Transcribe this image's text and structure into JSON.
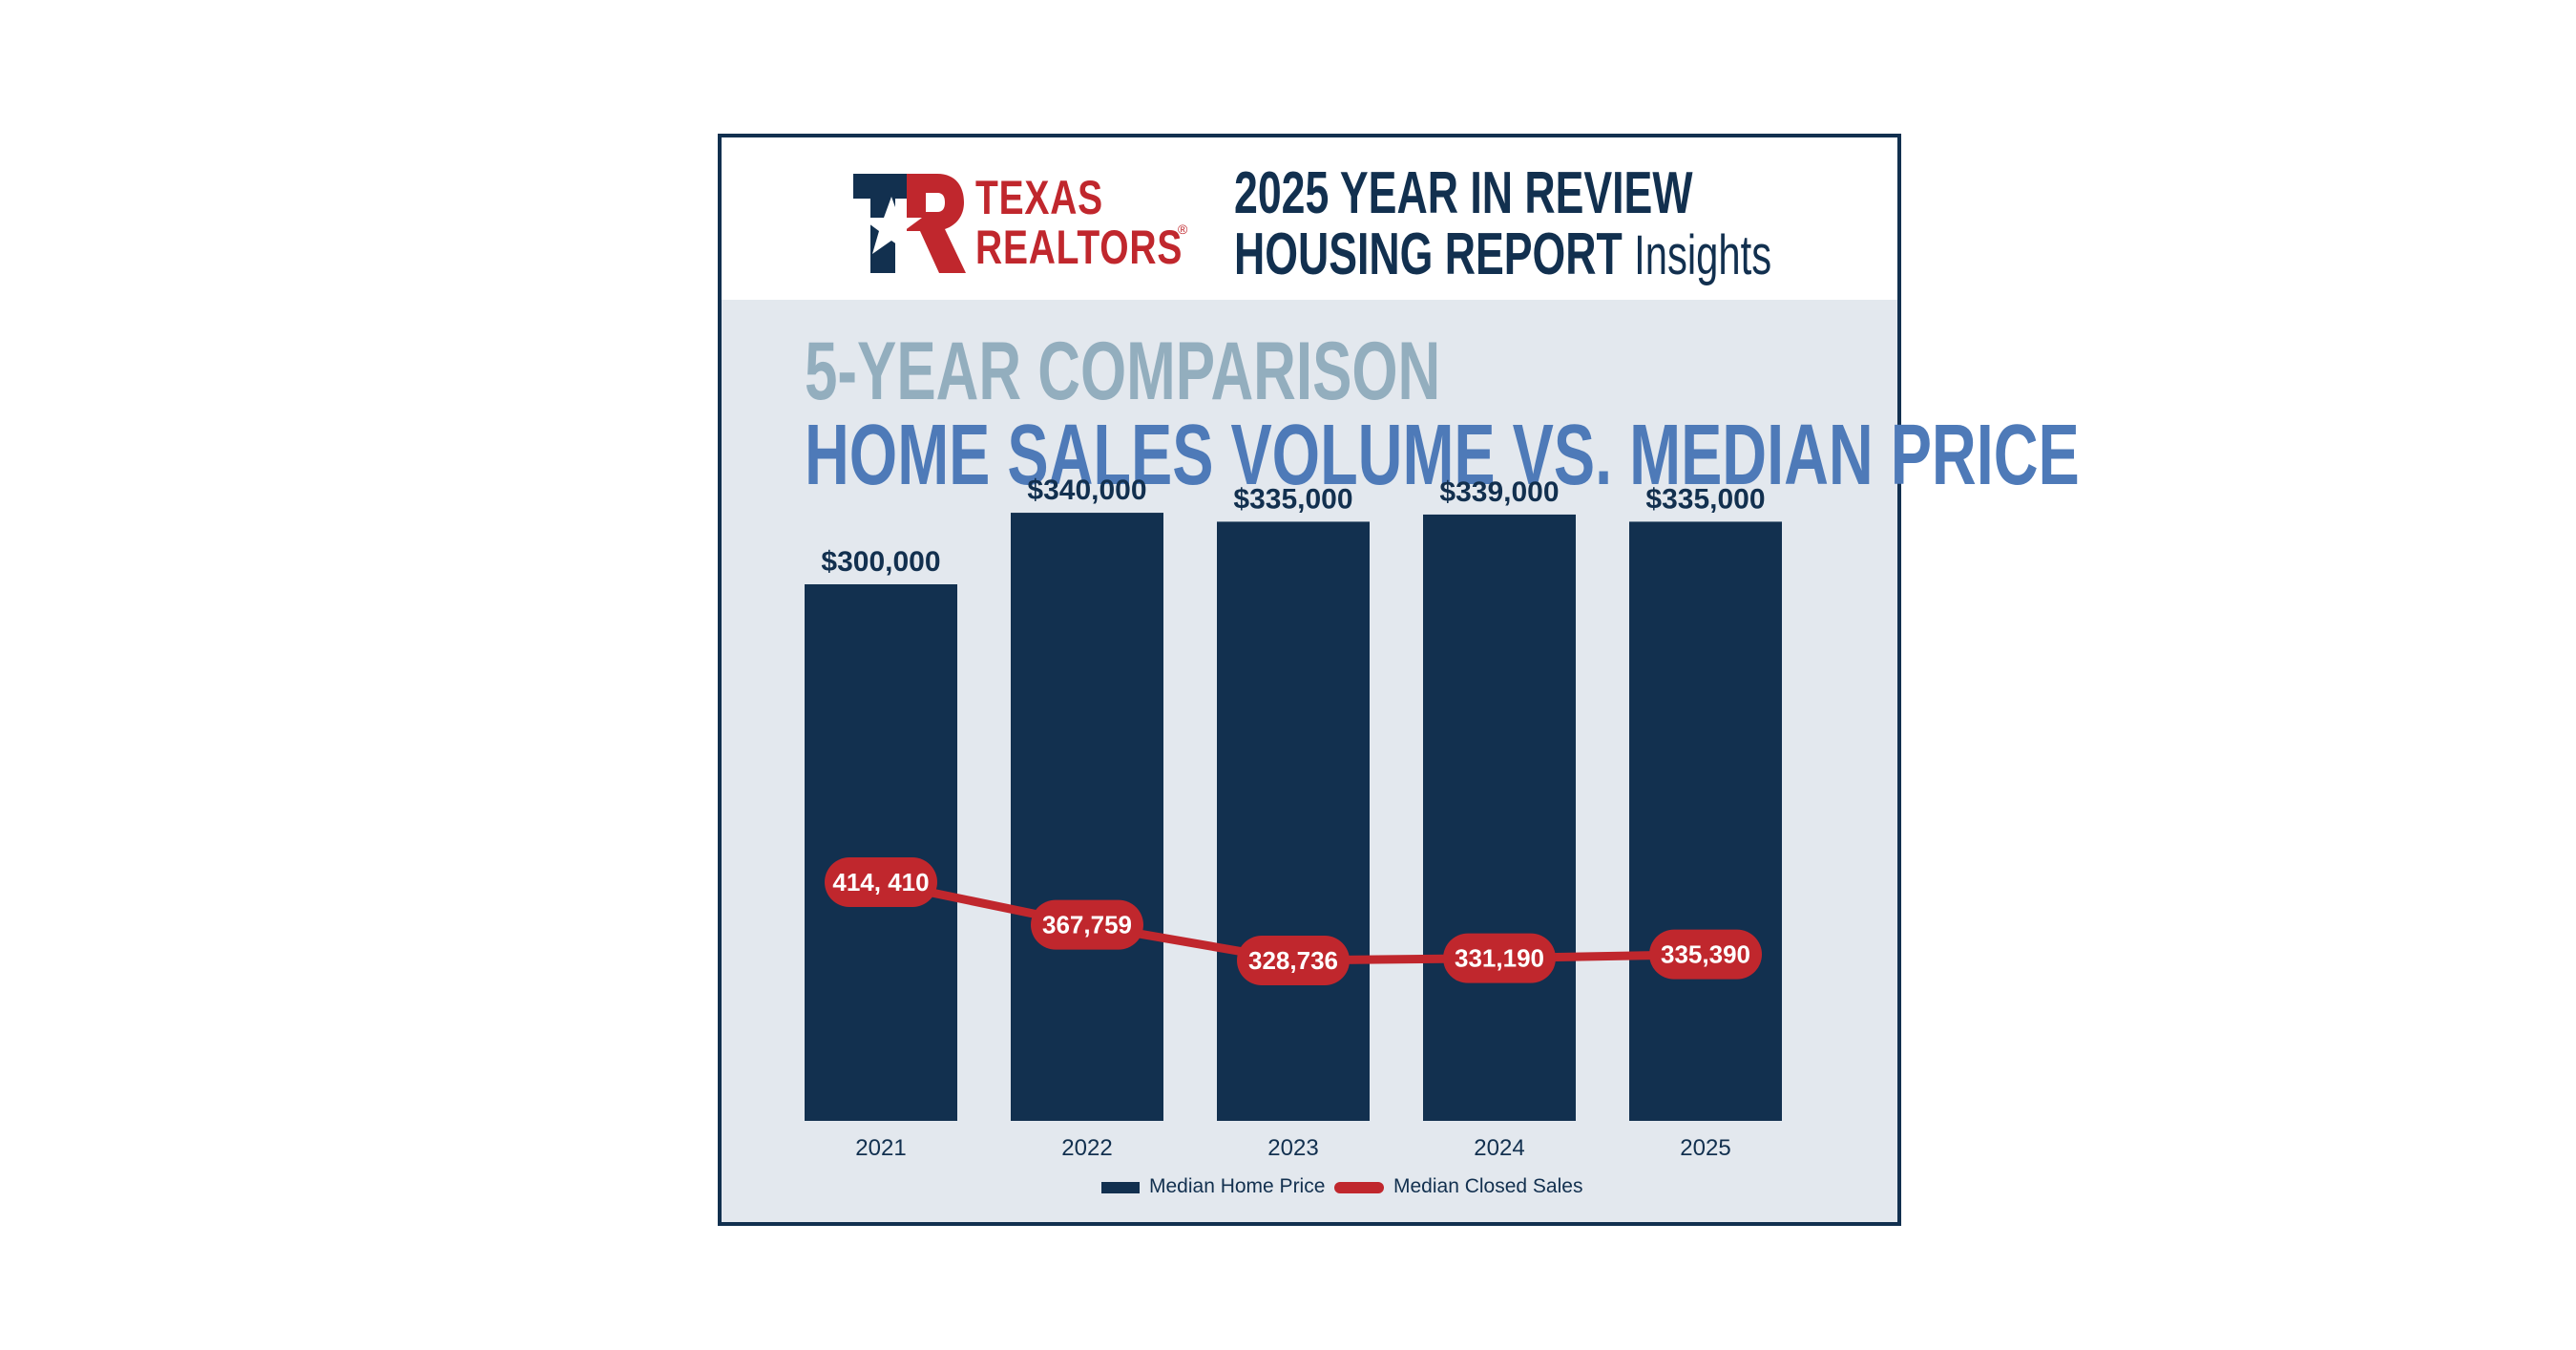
{
  "header": {
    "logo_line1": "TEXAS",
    "logo_line2": "REALTORS",
    "logo_reg": "®",
    "report_line1": "2025 YEAR IN REVIEW",
    "report_line2_bold": "HOUSING REPORT",
    "report_line2_light": "Insights"
  },
  "section": {
    "kicker": "5-YEAR COMPARISON",
    "title": "HOME SALES VOLUME VS. MEDIAN PRICE"
  },
  "colors": {
    "navy": "#12304f",
    "red": "#c0272d",
    "panel": "#e3e8ee",
    "kicker": "#93aebe",
    "title": "#4e7ab8"
  },
  "chart_data": {
    "type": "bar",
    "categories": [
      "2021",
      "2022",
      "2023",
      "2024",
      "2025"
    ],
    "series": [
      {
        "name": "Median Home Price",
        "type": "bar",
        "values": [
          300000,
          340000,
          335000,
          339000,
          335000
        ],
        "labels": [
          "$300,000",
          "$340,000",
          "$335,000",
          "$339,000",
          "$335,000"
        ],
        "color": "#12304f"
      },
      {
        "name": "Median Closed Sales",
        "type": "line",
        "values": [
          414410,
          367759,
          328736,
          331190,
          335390
        ],
        "labels": [
          "414, 410",
          "367,759",
          "328,736",
          "331,190",
          "335,390"
        ],
        "color": "#c0272d"
      }
    ],
    "title": "HOME SALES VOLUME VS. MEDIAN PRICE",
    "xlabel": "",
    "ylabel": "",
    "grid": false,
    "legend_position": "bottom"
  }
}
